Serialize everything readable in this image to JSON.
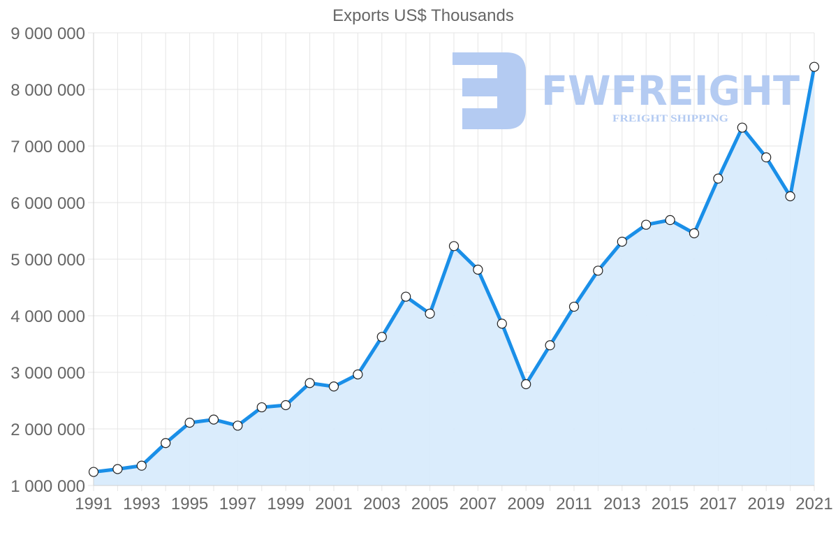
{
  "chart_data": {
    "type": "line",
    "title": "Exports US$ Thousands",
    "xlabel": "",
    "ylabel": "",
    "ylim": [
      1000000,
      9000000
    ],
    "xlim": [
      1991,
      2021
    ],
    "grid": true,
    "legend": null,
    "fill": true,
    "x": [
      1991,
      1992,
      1993,
      1994,
      1995,
      1996,
      1997,
      1998,
      1999,
      2000,
      2001,
      2002,
      2003,
      2004,
      2005,
      2006,
      2007,
      2008,
      2009,
      2010,
      2011,
      2012,
      2013,
      2014,
      2015,
      2016,
      2017,
      2018,
      2019,
      2020,
      2021
    ],
    "series": [
      {
        "name": "Exports US$ Thousands",
        "values": [
          1240000,
          1290000,
          1350000,
          1750000,
          2110000,
          2165000,
          2058000,
          2382000,
          2420000,
          2810000,
          2750000,
          2963000,
          3626000,
          4337000,
          4037000,
          5231000,
          4815000,
          3860000,
          2790000,
          3478000,
          4160000,
          4797000,
          5309000,
          5609000,
          5691000,
          5457000,
          6424000,
          7325000,
          6799000,
          6111000,
          8399000
        ]
      }
    ],
    "y_ticks": [
      1000000,
      2000000,
      3000000,
      4000000,
      5000000,
      6000000,
      7000000,
      8000000,
      9000000
    ],
    "y_tick_labels": [
      "1 000 000",
      "2 000 000",
      "3 000 000",
      "4 000 000",
      "5 000 000",
      "6 000 000",
      "7 000 000",
      "8 000 000",
      "9 000 000"
    ],
    "x_tick_labels": [
      "1991",
      "1993",
      "1995",
      "1997",
      "1999",
      "2001",
      "2003",
      "2005",
      "2007",
      "2009",
      "2011",
      "2013",
      "2015",
      "2017",
      "2019",
      "2021"
    ],
    "colors": {
      "line": "#1a8fe8",
      "fill": "#d8ebfc",
      "point_fill": "#ffffff",
      "point_stroke": "#222222",
      "text": "#666666",
      "grid": "#e5e5e5"
    }
  },
  "watermark": {
    "brand": "FWFREIGHT",
    "tagline": "FREIGHT SHIPPING",
    "color": "#b4cbf2"
  }
}
